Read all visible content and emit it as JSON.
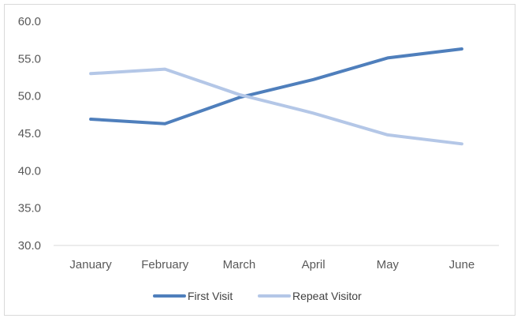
{
  "chart_data": {
    "type": "line",
    "title": "",
    "xlabel": "",
    "ylabel": "",
    "categories": [
      "January",
      "February",
      "March",
      "April",
      "May",
      "June"
    ],
    "ylim": [
      30.0,
      60.0
    ],
    "yticks": [
      "30.0",
      "35.0",
      "40.0",
      "45.0",
      "50.0",
      "55.0",
      "60.0"
    ],
    "grid": false,
    "legend_position": "bottom",
    "series": [
      {
        "name": "First Visit",
        "color": "#4f7fbc",
        "values": [
          46.9,
          46.3,
          49.8,
          52.2,
          55.1,
          56.3
        ]
      },
      {
        "name": "Repeat Visitor",
        "color": "#b4c7e7",
        "values": [
          53.0,
          53.6,
          50.2,
          47.7,
          44.8,
          43.6
        ]
      }
    ]
  }
}
